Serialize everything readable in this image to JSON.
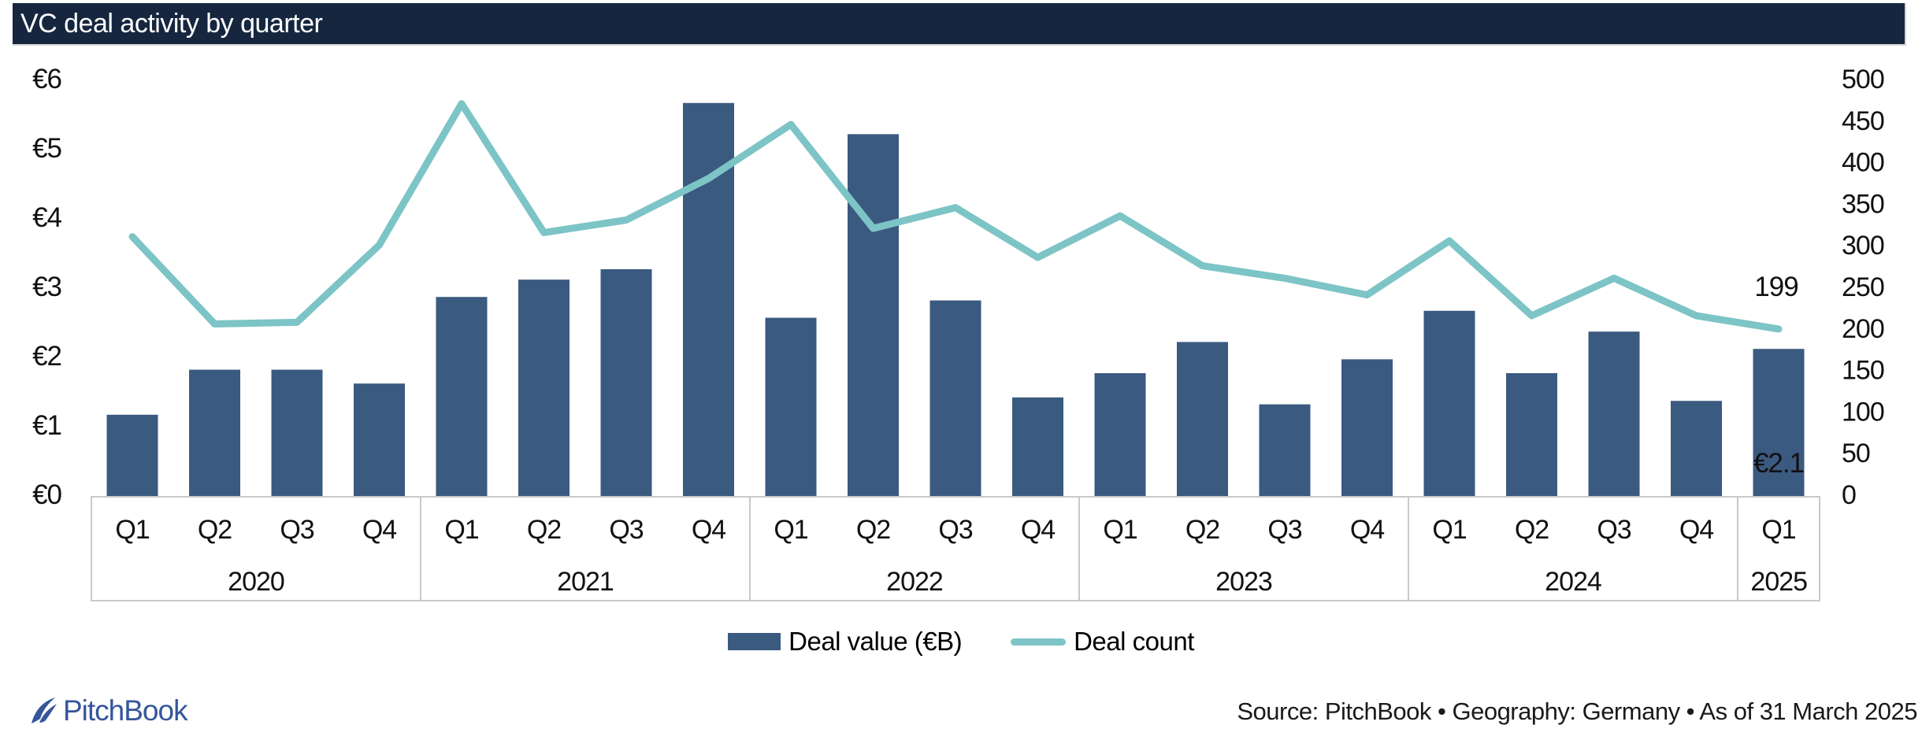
{
  "title": "VC deal activity by quarter",
  "chart_data": {
    "type": "bar",
    "subtype": "combo-bar-line",
    "categories": [
      "Q1 2020",
      "Q2 2020",
      "Q3 2020",
      "Q4 2020",
      "Q1 2021",
      "Q2 2021",
      "Q3 2021",
      "Q4 2021",
      "Q1 2022",
      "Q2 2022",
      "Q3 2022",
      "Q4 2022",
      "Q1 2023",
      "Q2 2023",
      "Q3 2023",
      "Q4 2023",
      "Q1 2024",
      "Q2 2024",
      "Q3 2024",
      "Q4 2024",
      "Q1 2025"
    ],
    "series": [
      {
        "name": "Deal value (€B)",
        "type": "bar",
        "color": "#3B5A80",
        "axis": "left",
        "values": [
          1.15,
          1.8,
          1.8,
          1.6,
          2.85,
          3.1,
          3.25,
          5.65,
          2.55,
          5.2,
          2.8,
          1.4,
          1.75,
          2.2,
          1.3,
          1.95,
          2.65,
          1.75,
          2.35,
          1.35,
          2.1
        ]
      },
      {
        "name": "Deal count",
        "type": "line",
        "color": "#7DC4C6",
        "axis": "right",
        "values": [
          310,
          205,
          207,
          300,
          470,
          315,
          330,
          380,
          445,
          320,
          345,
          285,
          335,
          275,
          260,
          240,
          305,
          215,
          260,
          215,
          199
        ]
      }
    ],
    "left_axis": {
      "ticks": [
        "€0",
        "€1",
        "€2",
        "€3",
        "€4",
        "€5",
        "€6"
      ],
      "min": 0,
      "max": 6
    },
    "right_axis": {
      "ticks": [
        "0",
        "50",
        "100",
        "150",
        "200",
        "250",
        "300",
        "350",
        "400",
        "450",
        "500"
      ],
      "min": 0,
      "max": 500
    },
    "annotations": [
      {
        "text": "199",
        "series": "Deal count",
        "category": "Q1 2025"
      },
      {
        "text": "€2.1",
        "series": "Deal value (€B)",
        "category": "Q1 2025"
      }
    ],
    "grid": false,
    "legend_position": "bottom"
  },
  "x_axis": {
    "year_groups": [
      {
        "year": "2020",
        "quarters": [
          "Q1",
          "Q2",
          "Q3",
          "Q4"
        ]
      },
      {
        "year": "2021",
        "quarters": [
          "Q1",
          "Q2",
          "Q3",
          "Q4"
        ]
      },
      {
        "year": "2022",
        "quarters": [
          "Q1",
          "Q2",
          "Q3",
          "Q4"
        ]
      },
      {
        "year": "2023",
        "quarters": [
          "Q1",
          "Q2",
          "Q3",
          "Q4"
        ]
      },
      {
        "year": "2024",
        "quarters": [
          "Q1",
          "Q2",
          "Q3",
          "Q4"
        ]
      },
      {
        "year": "2025",
        "quarters": [
          "Q1"
        ]
      }
    ]
  },
  "legend": [
    {
      "label": "Deal value (€B)",
      "swatch_color": "#3B5A80"
    },
    {
      "label": "Deal count",
      "swatch_color": "#7DC4C6"
    }
  ],
  "footer": {
    "logo_text": "PitchBook",
    "source_text": "Source: PitchBook • Geography: Germany • As of 31 March 2025"
  },
  "colors": {
    "title_bar_bg": "#16263F",
    "bar_fill": "#3B5A80",
    "line_stroke": "#7DC4C6",
    "axis_box_border": "#C9C9C9",
    "logo_blue": "#35569B"
  }
}
